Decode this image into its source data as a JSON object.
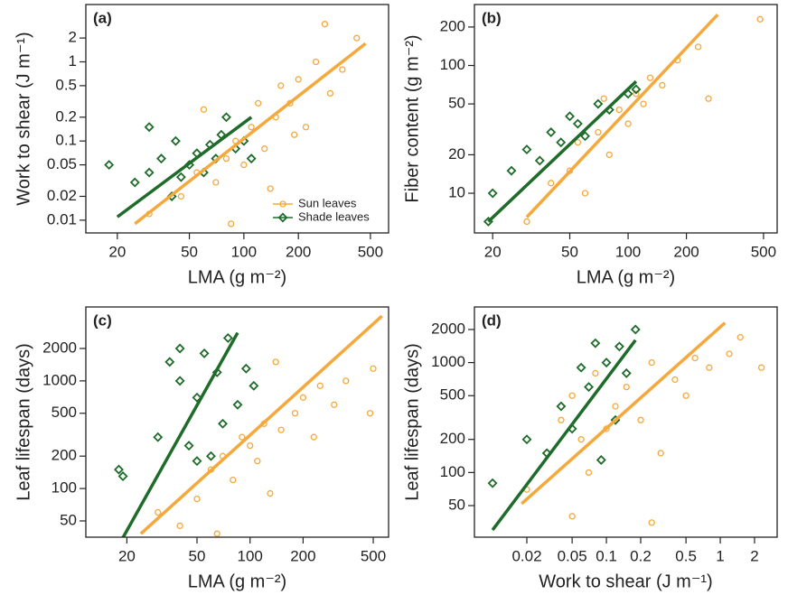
{
  "chart_data": [
    {
      "type": "scatter",
      "panel_label": "(a)",
      "x_label": "LMA (g m⁻²)",
      "y_label": "Work to shear (J m⁻¹)",
      "log_x": true,
      "log_y": true,
      "xlim": [
        13.4,
        630
      ],
      "ylim": [
        0.0069,
        5.3
      ],
      "xticks": [
        20,
        50,
        100,
        200,
        500
      ],
      "yticks": [
        0.01,
        0.02,
        0.05,
        0.1,
        0.2,
        0.5,
        1,
        2
      ],
      "legend": "lower right",
      "series": [
        {
          "name": "Sun leaves",
          "color": "#f5a83c",
          "marker": "circle",
          "x": [
            30,
            45,
            55,
            70,
            80,
            90,
            100,
            110,
            120,
            130,
            150,
            160,
            180,
            200,
            220,
            250,
            300,
            350,
            280,
            420,
            60,
            85,
            140,
            190
          ],
          "values": [
            0.012,
            0.02,
            0.04,
            0.03,
            0.06,
            0.1,
            0.05,
            0.15,
            0.3,
            0.08,
            0.2,
            0.5,
            0.3,
            0.6,
            0.15,
            1,
            0.4,
            0.8,
            3,
            2,
            0.25,
            0.009,
            0.025,
            0.12
          ],
          "fit_x": [
            25,
            470
          ],
          "fit_y": [
            0.009,
            1.7
          ]
        },
        {
          "name": "Shade leaves",
          "color": "#1e6b2a",
          "marker": "diamond",
          "x": [
            18,
            25,
            30,
            35,
            40,
            42,
            50,
            55,
            60,
            65,
            70,
            75,
            80,
            90,
            100,
            30,
            45,
            110
          ],
          "values": [
            0.05,
            0.03,
            0.04,
            0.06,
            0.02,
            0.1,
            0.05,
            0.07,
            0.04,
            0.09,
            0.06,
            0.12,
            0.2,
            0.08,
            0.1,
            0.15,
            0.035,
            0.06
          ],
          "fit_x": [
            20,
            110
          ],
          "fit_y": [
            0.011,
            0.2
          ]
        }
      ]
    },
    {
      "type": "scatter",
      "panel_label": "(b)",
      "x_label": "LMA (g m⁻²)",
      "y_label": "Fiber content (g m⁻²)",
      "log_x": true,
      "log_y": true,
      "xlim": [
        16.1,
        588
      ],
      "ylim": [
        4.89,
        300
      ],
      "xticks": [
        20,
        50,
        100,
        200,
        500
      ],
      "yticks": [
        10,
        20,
        50,
        100,
        200
      ],
      "series": [
        {
          "color": "#f5a83c",
          "marker": "circle",
          "x": [
            30,
            40,
            50,
            55,
            60,
            70,
            80,
            90,
            100,
            110,
            120,
            130,
            150,
            180,
            230,
            260,
            480,
            75
          ],
          "values": [
            6,
            12,
            15,
            25,
            10,
            30,
            20,
            45,
            35,
            60,
            50,
            80,
            70,
            110,
            140,
            55,
            230,
            55
          ],
          "fit_x": [
            30,
            290
          ],
          "fit_y": [
            6.5,
            250
          ]
        },
        {
          "color": "#1e6b2a",
          "marker": "diamond",
          "x": [
            19,
            20,
            25,
            30,
            35,
            40,
            45,
            50,
            55,
            60,
            70,
            80,
            100,
            110
          ],
          "values": [
            6,
            10,
            15,
            22,
            18,
            30,
            25,
            40,
            35,
            28,
            50,
            45,
            60,
            65
          ],
          "fit_x": [
            19,
            110
          ],
          "fit_y": [
            6,
            75
          ]
        }
      ]
    },
    {
      "type": "scatter",
      "panel_label": "(c)",
      "x_label": "LMA (g m⁻²)",
      "y_label": "Leaf lifespan (days)",
      "log_x": true,
      "log_y": true,
      "xlim": [
        11.7,
        611
      ],
      "ylim": [
        35.3,
        4860
      ],
      "xticks": [
        20,
        50,
        100,
        200,
        500
      ],
      "yticks": [
        50,
        100,
        200,
        500,
        1000,
        2000
      ],
      "series": [
        {
          "color": "#f5a83c",
          "marker": "circle",
          "x": [
            30,
            40,
            50,
            60,
            70,
            80,
            90,
            100,
            110,
            120,
            130,
            150,
            180,
            200,
            230,
            250,
            300,
            350,
            480,
            500,
            65,
            140
          ],
          "values": [
            60,
            45,
            80,
            150,
            200,
            120,
            300,
            250,
            180,
            400,
            90,
            350,
            500,
            700,
            300,
            900,
            600,
            1000,
            500,
            1300,
            38,
            1500
          ],
          "fit_x": [
            24,
            560
          ],
          "fit_y": [
            38,
            4000
          ]
        },
        {
          "color": "#1e6b2a",
          "marker": "diamond",
          "x": [
            18,
            19,
            30,
            35,
            40,
            45,
            50,
            55,
            60,
            65,
            70,
            75,
            85,
            95,
            105,
            50,
            40
          ],
          "values": [
            150,
            130,
            300,
            1500,
            1000,
            250,
            700,
            1800,
            200,
            1200,
            400,
            2500,
            600,
            1300,
            900,
            180,
            2000
          ],
          "fit_x": [
            19,
            85
          ],
          "fit_y": [
            35,
            2800
          ]
        }
      ]
    },
    {
      "type": "scatter",
      "panel_label": "(d)",
      "x_label": "Work to shear (J m⁻¹)",
      "y_label": "Leaf lifespan (days)",
      "log_x": true,
      "log_y": true,
      "xlim": [
        0.00693,
        3.16
      ],
      "ylim": [
        25.8,
        3206
      ],
      "xticks": [
        0.02,
        0.05,
        0.1,
        0.2,
        0.5,
        1,
        2
      ],
      "yticks": [
        50,
        100,
        200,
        500,
        1000,
        2000
      ],
      "series": [
        {
          "color": "#f5a83c",
          "marker": "circle",
          "x": [
            0.02,
            0.03,
            0.04,
            0.05,
            0.06,
            0.07,
            0.08,
            0.1,
            0.12,
            0.15,
            0.2,
            0.25,
            0.3,
            0.4,
            0.5,
            0.6,
            0.8,
            1.2,
            1.5,
            2.3,
            0.05,
            0.25
          ],
          "values": [
            70,
            150,
            300,
            500,
            200,
            100,
            800,
            250,
            400,
            600,
            300,
            1000,
            150,
            700,
            500,
            1100,
            900,
            1200,
            1700,
            900,
            40,
            35
          ],
          "fit_x": [
            0.018,
            1.1
          ],
          "fit_y": [
            52,
            2300
          ]
        },
        {
          "color": "#1e6b2a",
          "marker": "diamond",
          "x": [
            0.01,
            0.02,
            0.03,
            0.04,
            0.05,
            0.06,
            0.07,
            0.08,
            0.1,
            0.12,
            0.13,
            0.15,
            0.18,
            0.09
          ],
          "values": [
            80,
            200,
            150,
            400,
            250,
            900,
            600,
            1500,
            1000,
            300,
            1400,
            800,
            2000,
            130
          ],
          "fit_x": [
            0.01,
            0.18
          ],
          "fit_y": [
            30,
            1600
          ]
        }
      ]
    }
  ]
}
